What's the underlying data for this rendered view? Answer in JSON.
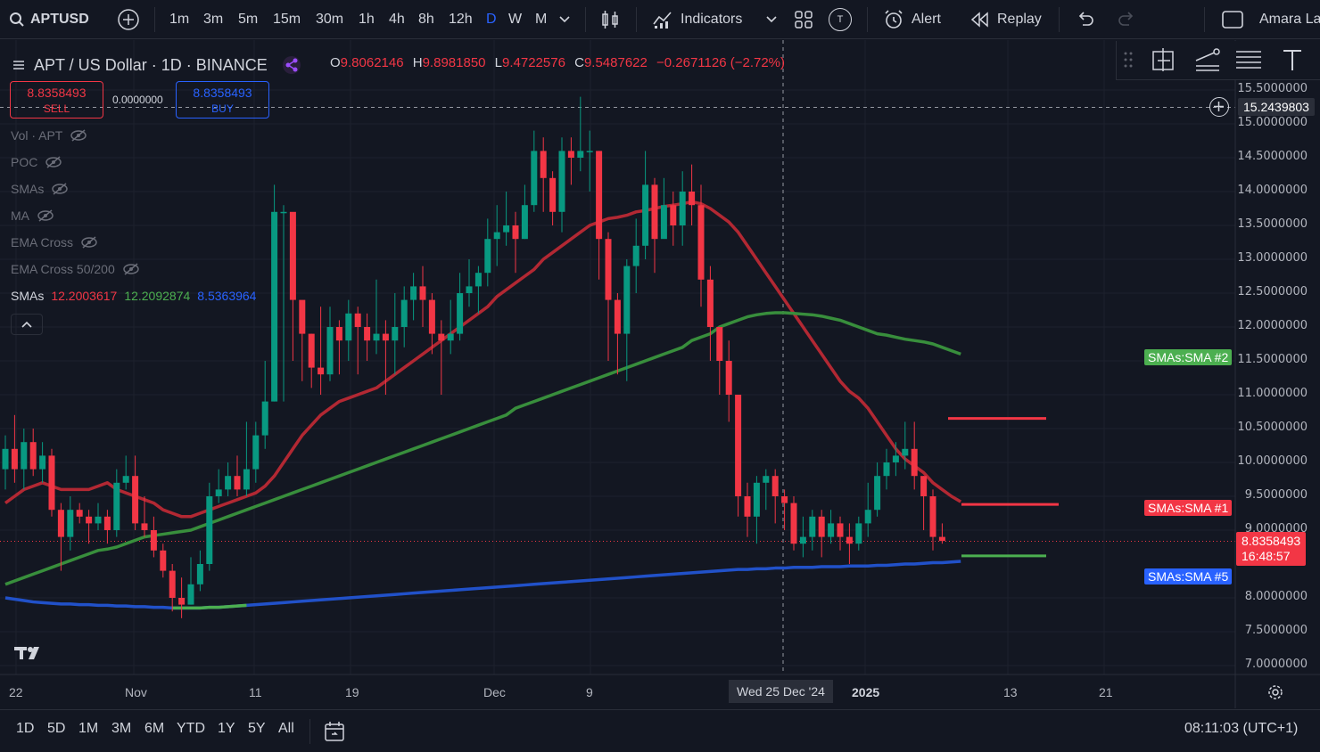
{
  "toolbar": {
    "symbol": "APTUSD",
    "intervals": [
      "1m",
      "3m",
      "5m",
      "15m",
      "30m",
      "1h",
      "4h",
      "8h",
      "12h",
      "D",
      "W",
      "M"
    ],
    "active_interval": "D",
    "indicators_label": "Indicators",
    "alert_label": "Alert",
    "replay_label": "Replay",
    "user_label": "Amara La",
    "t_badge": "T"
  },
  "header": {
    "title": "APT / US Dollar · 1D · BINANCE",
    "o_label": "O",
    "o_value": "9.8062146",
    "h_label": "H",
    "h_value": "9.8981850",
    "l_label": "L",
    "l_value": "9.4722576",
    "c_label": "C",
    "c_value": "9.5487622",
    "change": "−0.2671126 (−2.72%)"
  },
  "trade": {
    "sell_price": "8.8358493",
    "sell_label": "SELL",
    "spread": "0.0000000",
    "buy_price": "8.8358493",
    "buy_label": "BUY"
  },
  "legend": {
    "items": [
      "Vol · APT",
      "POC",
      "SMAs",
      "MA",
      "EMA Cross",
      "EMA Cross 50/200"
    ],
    "smas_label": "SMAs",
    "sma1": "12.2003617",
    "sma2": "12.2092874",
    "sma5": "8.5363964"
  },
  "price_axis": {
    "labels": [
      "15.5000000",
      "15.0000000",
      "14.5000000",
      "14.0000000",
      "13.5000000",
      "13.0000000",
      "12.5000000",
      "12.0000000",
      "11.5000000",
      "11.0000000",
      "10.5000000",
      "10.0000000",
      "9.5000000",
      "9.0000000",
      "8.0000000",
      "7.5000000",
      "7.0000000"
    ],
    "crosshair_price": "15.2439803",
    "last_price": "8.8358493",
    "countdown": "16:48:57",
    "tag_sma2": "SMAs:SMA #2",
    "tag_sma1": "SMAs:SMA #1",
    "tag_sma5": "SMAs:SMA #5"
  },
  "time_axis": {
    "labels": [
      "22",
      "Nov",
      "11",
      "19",
      "Dec",
      "9",
      "2025",
      "13",
      "21"
    ],
    "crosshair_date": "Wed 25 Dec '24"
  },
  "bottom": {
    "ranges": [
      "1D",
      "5D",
      "1M",
      "3M",
      "6M",
      "YTD",
      "1Y",
      "5Y",
      "All"
    ],
    "clock": "08:11:03 (UTC+1)"
  },
  "colors": {
    "up": "#089981",
    "down": "#f23645",
    "sma1": "#b22833",
    "sma2": "#388e3c",
    "sma5": "#2151c9",
    "bg": "#131722"
  },
  "chart_data": {
    "type": "candlestick",
    "title": "APT / US Dollar · 1D · BINANCE",
    "ylim": [
      6.8,
      15.8
    ],
    "candles": [
      [
        9.9,
        10.2,
        10.4,
        9.6
      ],
      [
        10.2,
        9.9,
        10.7,
        9.7
      ],
      [
        9.9,
        10.3,
        10.5,
        9.6
      ],
      [
        10.3,
        9.9,
        10.5,
        9.8
      ],
      [
        9.9,
        10.1,
        10.3,
        9.7
      ],
      [
        10.1,
        9.3,
        10.2,
        9.2
      ],
      [
        9.3,
        8.9,
        9.4,
        8.4
      ],
      [
        8.9,
        9.3,
        9.5,
        8.7
      ],
      [
        9.3,
        9.2,
        9.4,
        9.1
      ],
      [
        9.2,
        9.1,
        9.3,
        8.8
      ],
      [
        9.1,
        9.2,
        9.4,
        9.0
      ],
      [
        9.2,
        9.0,
        9.3,
        8.8
      ],
      [
        9.0,
        9.7,
        9.9,
        8.9
      ],
      [
        9.7,
        9.8,
        10.1,
        9.6
      ],
      [
        9.8,
        9.1,
        10.1,
        9.0
      ],
      [
        9.1,
        9.0,
        9.5,
        8.9
      ],
      [
        9.0,
        8.7,
        9.2,
        8.6
      ],
      [
        8.7,
        8.4,
        8.8,
        8.3
      ],
      [
        8.4,
        8.0,
        8.5,
        7.8
      ],
      [
        8.0,
        7.9,
        8.3,
        7.7
      ],
      [
        7.9,
        8.2,
        8.6,
        7.9
      ],
      [
        8.2,
        8.5,
        8.7,
        8.1
      ],
      [
        8.5,
        9.5,
        9.7,
        8.4
      ],
      [
        9.5,
        9.6,
        9.9,
        9.4
      ],
      [
        9.6,
        9.8,
        10.0,
        9.5
      ],
      [
        9.8,
        9.6,
        10.1,
        9.5
      ],
      [
        9.6,
        9.9,
        10.6,
        9.5
      ],
      [
        9.9,
        10.4,
        10.6,
        9.7
      ],
      [
        10.4,
        10.9,
        11.5,
        10.2
      ],
      [
        10.9,
        13.7,
        14.1,
        10.9
      ],
      [
        13.7,
        13.7,
        13.8,
        10.9
      ],
      [
        13.7,
        12.4,
        12.6,
        11.5
      ],
      [
        12.4,
        11.9,
        12.3,
        11.2
      ],
      [
        11.9,
        11.4,
        11.9,
        11.1
      ],
      [
        11.4,
        11.3,
        12.3,
        11.0
      ],
      [
        11.3,
        12.0,
        12.3,
        11.2
      ],
      [
        12.0,
        11.8,
        12.1,
        11.3
      ],
      [
        11.8,
        12.2,
        12.4,
        11.5
      ],
      [
        12.2,
        12.0,
        12.3,
        11.3
      ],
      [
        12.0,
        11.8,
        12.2,
        11.5
      ],
      [
        11.8,
        11.9,
        12.7,
        11.6
      ],
      [
        11.9,
        11.8,
        12.1,
        11.0
      ],
      [
        11.8,
        12.0,
        12.5,
        11.3
      ],
      [
        12.0,
        12.4,
        12.6,
        11.7
      ],
      [
        12.4,
        12.6,
        12.8,
        12.1
      ],
      [
        12.6,
        12.4,
        12.9,
        12.0
      ],
      [
        12.4,
        11.9,
        12.5,
        11.6
      ],
      [
        11.9,
        11.8,
        12.1,
        11.0
      ],
      [
        11.8,
        11.9,
        12.4,
        11.6
      ],
      [
        11.9,
        12.5,
        12.8,
        11.8
      ],
      [
        12.5,
        12.6,
        13.0,
        12.3
      ],
      [
        12.6,
        12.8,
        12.9,
        12.2
      ],
      [
        12.8,
        13.3,
        13.6,
        12.6
      ],
      [
        13.3,
        13.4,
        13.8,
        12.9
      ],
      [
        13.4,
        13.5,
        14.0,
        13.2
      ],
      [
        13.5,
        13.3,
        13.7,
        12.8
      ],
      [
        13.3,
        13.8,
        14.1,
        13.3
      ],
      [
        13.8,
        14.6,
        14.9,
        13.7
      ],
      [
        14.6,
        14.2,
        14.8,
        13.7
      ],
      [
        14.2,
        13.7,
        14.3,
        13.5
      ],
      [
        13.7,
        14.6,
        14.8,
        13.4
      ],
      [
        14.6,
        14.5,
        14.8,
        14.1
      ],
      [
        14.5,
        14.6,
        15.4,
        14.3
      ],
      [
        14.6,
        14.6,
        14.9,
        14.0
      ],
      [
        14.6,
        13.3,
        14.6,
        12.7
      ],
      [
        13.3,
        12.4,
        13.4,
        11.5
      ],
      [
        12.4,
        11.9,
        12.5,
        11.3
      ],
      [
        11.9,
        12.9,
        13.0,
        11.2
      ],
      [
        12.9,
        13.2,
        13.6,
        12.5
      ],
      [
        13.2,
        14.1,
        14.6,
        13.0
      ],
      [
        14.1,
        13.3,
        14.2,
        12.8
      ],
      [
        13.3,
        13.8,
        14.2,
        13.5
      ],
      [
        13.8,
        13.5,
        14.0,
        13.2
      ],
      [
        13.5,
        14.0,
        14.3,
        13.2
      ],
      [
        14.0,
        13.8,
        14.4,
        13.5
      ],
      [
        13.8,
        12.7,
        14.1,
        12.3
      ],
      [
        12.7,
        12.0,
        12.9,
        11.5
      ],
      [
        12.0,
        11.5,
        12.0,
        11.0
      ],
      [
        11.5,
        11.0,
        11.8,
        10.6
      ],
      [
        11.0,
        9.5,
        11.0,
        9.2
      ],
      [
        9.5,
        9.2,
        9.7,
        8.9
      ],
      [
        9.2,
        9.7,
        9.8,
        8.8
      ],
      [
        9.7,
        9.8,
        9.9,
        9.3
      ],
      [
        9.8,
        9.5,
        9.9,
        9.1
      ],
      [
        9.5,
        9.4,
        9.6,
        9.0
      ],
      [
        9.4,
        8.8,
        9.5,
        8.7
      ],
      [
        8.8,
        8.9,
        9.2,
        8.6
      ],
      [
        8.9,
        9.2,
        9.3,
        8.7
      ],
      [
        9.2,
        8.9,
        9.3,
        8.6
      ],
      [
        8.9,
        9.1,
        9.3,
        8.8
      ],
      [
        9.1,
        8.9,
        9.2,
        8.7
      ],
      [
        8.9,
        8.8,
        9.1,
        8.5
      ],
      [
        8.8,
        9.1,
        9.2,
        8.7
      ],
      [
        9.1,
        9.3,
        9.7,
        8.9
      ],
      [
        9.3,
        9.8,
        10.0,
        9.2
      ],
      [
        9.8,
        10.0,
        10.2,
        9.6
      ],
      [
        10.0,
        10.1,
        10.3,
        9.8
      ],
      [
        10.1,
        10.2,
        10.6,
        9.9
      ],
      [
        10.2,
        9.8,
        10.6,
        9.6
      ],
      [
        9.8,
        9.5,
        9.8,
        9.0
      ],
      [
        9.5,
        8.9,
        9.6,
        8.7
      ],
      [
        8.9,
        8.84,
        9.1,
        8.8
      ]
    ],
    "series": [
      {
        "name": "SMAs:SMA #1",
        "values": [
          9.4,
          9.5,
          9.6,
          9.65,
          9.7,
          9.65,
          9.6,
          9.6,
          9.6,
          9.6,
          9.65,
          9.7,
          9.6,
          9.55,
          9.5,
          9.45,
          9.4,
          9.3,
          9.25,
          9.2,
          9.2,
          9.25,
          9.3,
          9.35,
          9.4,
          9.45,
          9.5,
          9.55,
          9.65,
          9.8,
          10.0,
          10.2,
          10.4,
          10.55,
          10.7,
          10.8,
          10.9,
          10.95,
          11.0,
          11.05,
          11.1,
          11.2,
          11.3,
          11.4,
          11.5,
          11.6,
          11.7,
          11.8,
          11.9,
          12.0,
          12.1,
          12.2,
          12.3,
          12.45,
          12.55,
          12.65,
          12.75,
          12.85,
          13.0,
          13.1,
          13.2,
          13.3,
          13.4,
          13.5,
          13.55,
          13.6,
          13.62,
          13.65,
          13.7,
          13.72,
          13.75,
          13.78,
          13.8,
          13.82,
          13.85,
          13.82,
          13.75,
          13.65,
          13.55,
          13.4,
          13.2,
          13.0,
          12.8,
          12.6,
          12.4,
          12.2,
          12.0,
          11.8,
          11.6,
          11.4,
          11.2,
          11.05,
          10.95,
          10.8,
          10.6,
          10.4,
          10.2,
          10.05,
          9.95,
          9.85,
          9.7,
          9.6,
          9.5,
          9.42
        ]
      },
      {
        "name": "SMAs:SMA #2",
        "values": [
          8.2,
          8.25,
          8.3,
          8.35,
          8.4,
          8.45,
          8.5,
          8.55,
          8.6,
          8.65,
          8.7,
          8.72,
          8.75,
          8.8,
          8.85,
          8.9,
          8.92,
          8.94,
          8.96,
          8.98,
          9.0,
          9.05,
          9.1,
          9.15,
          9.2,
          9.25,
          9.3,
          9.35,
          9.4,
          9.45,
          9.5,
          9.55,
          9.6,
          9.65,
          9.7,
          9.75,
          9.8,
          9.85,
          9.9,
          9.95,
          10.0,
          10.05,
          10.1,
          10.15,
          10.2,
          10.25,
          10.3,
          10.35,
          10.4,
          10.45,
          10.5,
          10.55,
          10.6,
          10.65,
          10.7,
          10.8,
          10.85,
          10.9,
          10.95,
          11.0,
          11.05,
          11.1,
          11.15,
          11.2,
          11.25,
          11.3,
          11.35,
          11.4,
          11.45,
          11.5,
          11.55,
          11.6,
          11.65,
          11.7,
          11.8,
          11.85,
          11.9,
          12.0,
          12.05,
          12.1,
          12.15,
          12.18,
          12.2,
          12.21,
          12.21,
          12.2,
          12.19,
          12.18,
          12.16,
          12.13,
          12.1,
          12.05,
          12.0,
          11.95,
          11.9,
          11.88,
          11.85,
          11.82,
          11.8,
          11.78,
          11.75,
          11.7,
          11.65,
          11.6
        ]
      },
      {
        "name": "SMAs:SMA #5",
        "values": [
          8.0,
          7.98,
          7.96,
          7.94,
          7.93,
          7.92,
          7.91,
          7.91,
          7.9,
          7.9,
          7.89,
          7.89,
          7.88,
          7.88,
          7.87,
          7.87,
          7.86,
          7.86,
          7.85,
          7.85,
          7.85,
          7.85,
          7.86,
          7.86,
          7.87,
          7.88,
          7.89,
          7.9,
          7.91,
          7.92,
          7.93,
          7.94,
          7.95,
          7.96,
          7.97,
          7.98,
          7.99,
          8.0,
          8.01,
          8.02,
          8.03,
          8.04,
          8.05,
          8.06,
          8.07,
          8.08,
          8.09,
          8.1,
          8.11,
          8.12,
          8.13,
          8.14,
          8.15,
          8.16,
          8.17,
          8.18,
          8.19,
          8.2,
          8.21,
          8.22,
          8.23,
          8.24,
          8.25,
          8.26,
          8.27,
          8.28,
          8.29,
          8.3,
          8.31,
          8.32,
          8.33,
          8.34,
          8.35,
          8.36,
          8.37,
          8.38,
          8.39,
          8.4,
          8.41,
          8.42,
          8.42,
          8.43,
          8.43,
          8.44,
          8.44,
          8.45,
          8.45,
          8.45,
          8.46,
          8.46,
          8.46,
          8.47,
          8.47,
          8.47,
          8.48,
          8.48,
          8.49,
          8.5,
          8.5,
          8.51,
          8.52,
          8.52,
          8.53,
          8.54
        ]
      }
    ],
    "horizontal_levels": [
      {
        "price": 10.65,
        "color": "#f23645"
      },
      {
        "price": 9.38,
        "color": "#f23645"
      },
      {
        "price": 8.62,
        "color": "#4caf50"
      }
    ]
  }
}
